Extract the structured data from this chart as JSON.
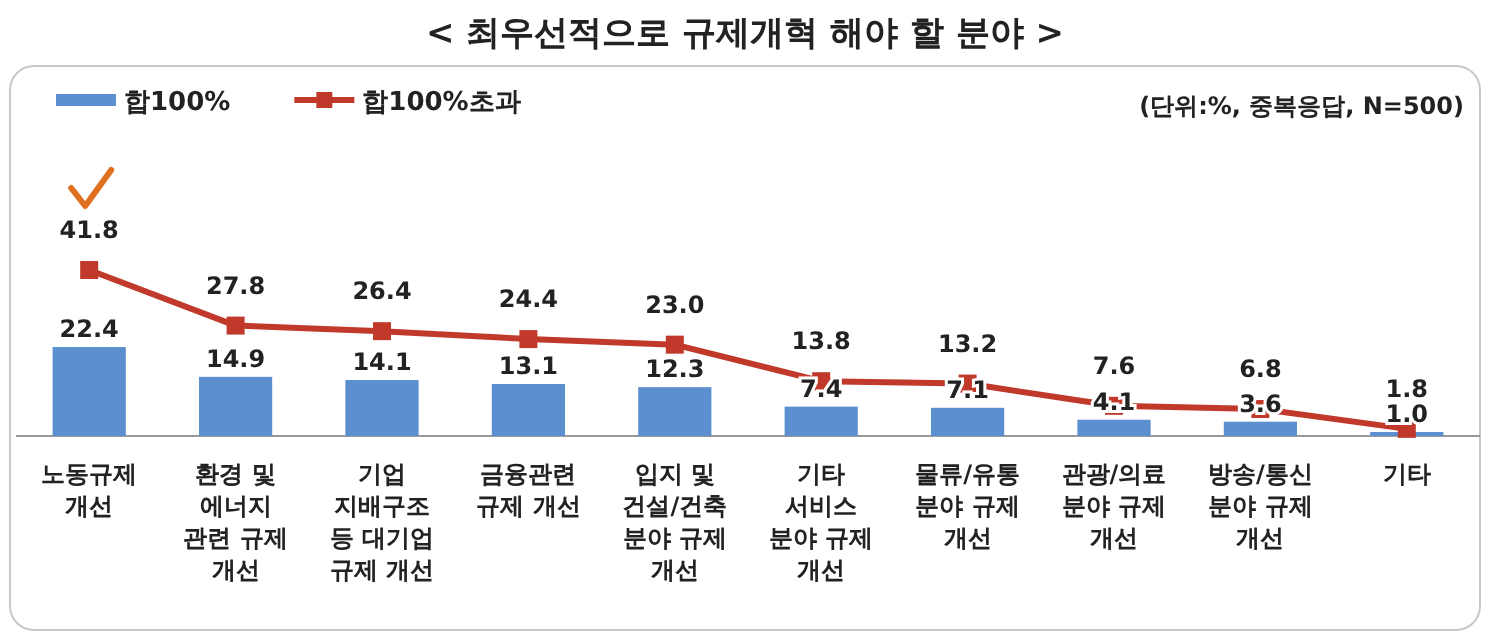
{
  "chart_data": {
    "type": "bar",
    "title": "< 최우선적으로 규제개혁 해야 할 분야 >",
    "annotations": [
      "(단위:%, 중복응답, N=500)"
    ],
    "categories": [
      "노동규제\n개선",
      "환경 및\n에너지\n관련 규제\n개선",
      "기업\n지배구조\n등 대기업\n규제 개선",
      "금융관련\n규제 개선",
      "입지 및\n건설/건축\n분야 규제\n개선",
      "기타\n서비스\n분야 규제\n개선",
      "물류/유통\n분야 규제\n개선",
      "관광/의료\n분야 규제\n개선",
      "방송/통신\n분야 규제\n개선",
      "기타"
    ],
    "series": [
      {
        "name": "합100%",
        "color": "#5b8fd0",
        "values": [
          22.4,
          14.9,
          14.1,
          13.1,
          12.3,
          7.4,
          7.1,
          4.1,
          3.6,
          1.0
        ],
        "value_labels": [
          "22.4",
          "14.9",
          "14.1",
          "13.1",
          "12.3",
          "7.4",
          "7.1",
          "4.1",
          "3.6",
          "1.0"
        ]
      },
      {
        "name": "합100%초과",
        "type": "line",
        "color": "#c0392b",
        "values": [
          41.8,
          27.8,
          26.4,
          24.4,
          23.0,
          13.8,
          13.2,
          7.6,
          6.8,
          1.8
        ],
        "value_labels": [
          "41.8",
          "27.8",
          "26.4",
          "24.4",
          "23.0",
          "13.8",
          "13.2",
          "7.6",
          "6.8",
          "1.8"
        ]
      }
    ],
    "legend": "top left",
    "marker": "square"
  }
}
